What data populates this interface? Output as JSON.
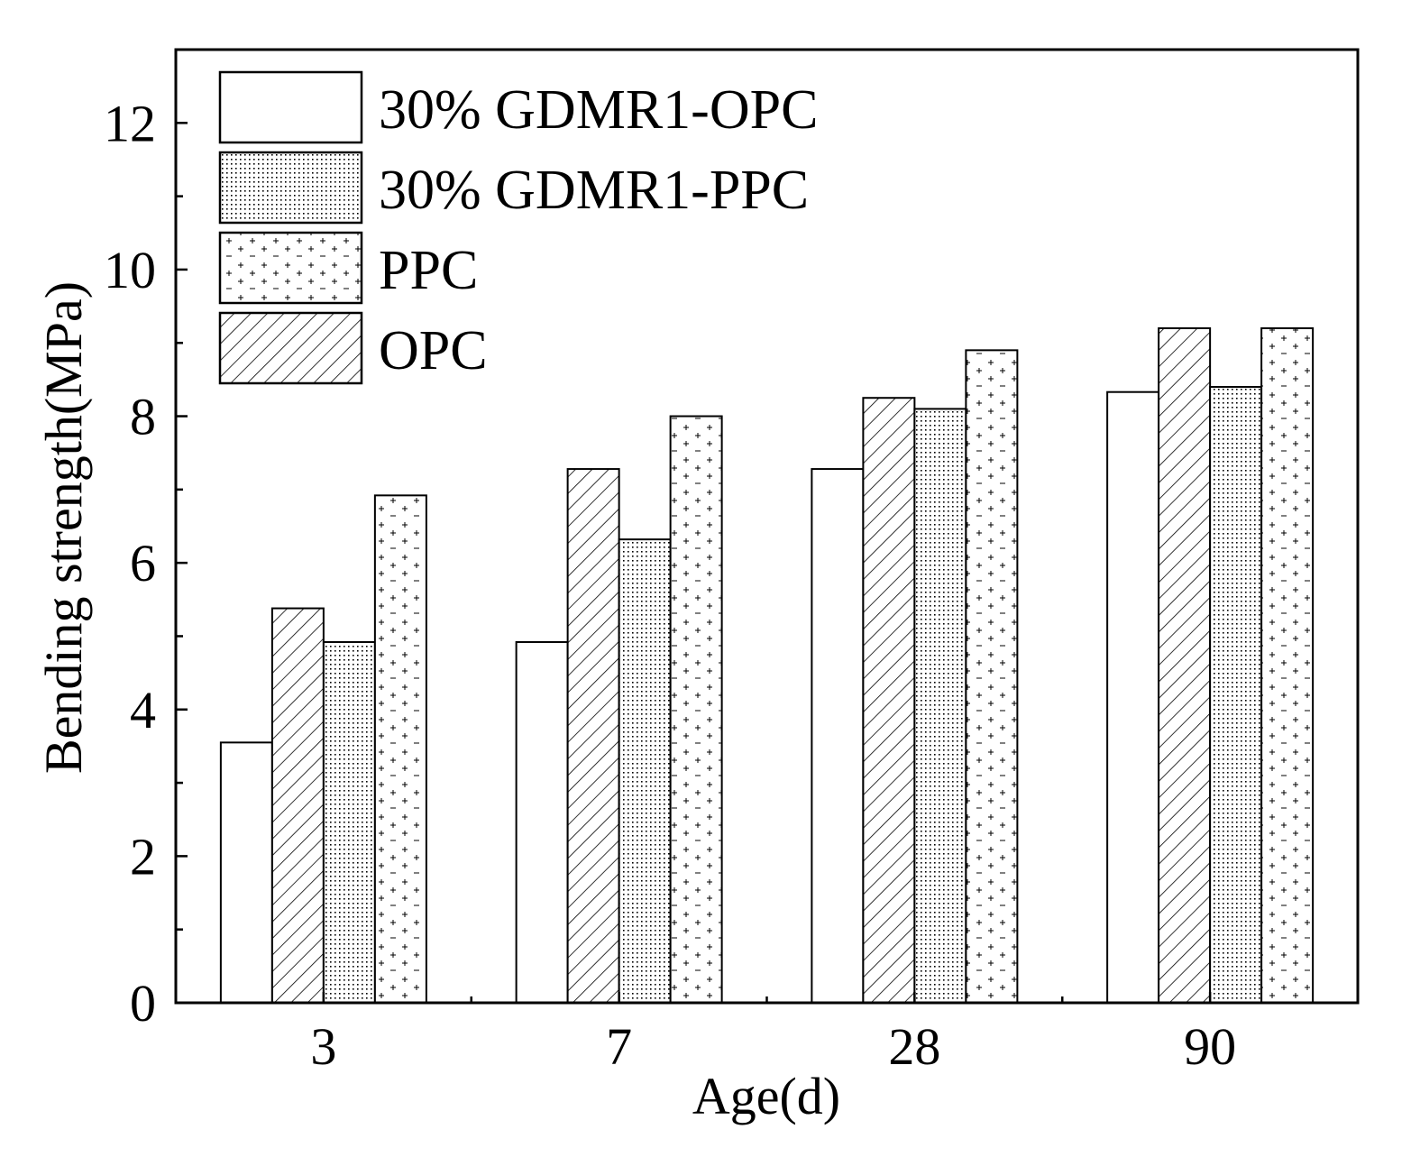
{
  "chart_data": {
    "type": "bar",
    "xlabel": "Age(d)",
    "ylabel": "Bending strength(MPa)",
    "categories": [
      "3",
      "7",
      "28",
      "90"
    ],
    "ylim": [
      0,
      13
    ],
    "yticks": [
      "0",
      "2",
      "4",
      "6",
      "8",
      "10",
      "12"
    ],
    "grid": false,
    "legend_position": "top-left",
    "legend": [
      {
        "label": "30% GDMR1-OPC",
        "pattern": "blank"
      },
      {
        "label": "30% GDMR1-PPC",
        "pattern": "dots"
      },
      {
        "label": "PPC",
        "pattern": "plus"
      },
      {
        "label": "OPC",
        "pattern": "hatch"
      }
    ],
    "series": [
      {
        "name": "30% GDMR1-OPC",
        "pattern": "blank",
        "values": [
          3.55,
          4.92,
          7.28,
          8.33
        ]
      },
      {
        "name": "OPC",
        "pattern": "hatch",
        "values": [
          5.38,
          7.28,
          8.25,
          9.2
        ]
      },
      {
        "name": "30% GDMR1-PPC",
        "pattern": "dots",
        "values": [
          4.92,
          6.32,
          8.1,
          8.4
        ]
      },
      {
        "name": "PPC",
        "pattern": "plus",
        "values": [
          6.92,
          8.0,
          8.9,
          9.2
        ]
      }
    ]
  }
}
